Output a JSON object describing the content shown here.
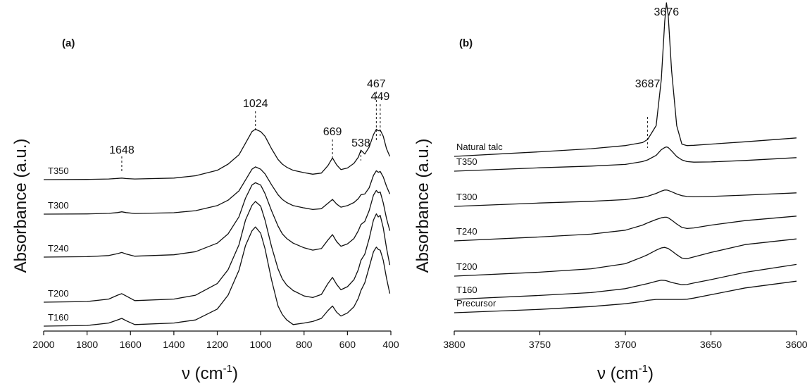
{
  "chart_data": [
    {
      "type": "line",
      "panel_label": "(a)",
      "ylabel": "Absorbance (a.u.)",
      "xlabel_base": "ν (cm",
      "xlabel_exp": "-1",
      "xlabel_close": ")",
      "x_axis": {
        "min": 400,
        "max": 2000,
        "reversed": true,
        "ticks": [
          2000,
          1800,
          1600,
          1400,
          1200,
          1000,
          800,
          600,
          400
        ],
        "tick_labels": [
          "2000",
          "1800",
          "1600",
          "1400",
          "1200",
          "1000",
          "800",
          "600",
          "400"
        ]
      },
      "annotations": [
        {
          "label": "1648",
          "x": 1640
        },
        {
          "label": "1024",
          "x": 1024
        },
        {
          "label": "669",
          "x": 669
        },
        {
          "label": "538",
          "x": 538
        },
        {
          "label": "467",
          "x": 467
        },
        {
          "label": "449",
          "x": 449
        }
      ],
      "series": [
        {
          "name": "T350",
          "x": [
            2000,
            1800,
            1700,
            1660,
            1640,
            1620,
            1580,
            1400,
            1300,
            1200,
            1150,
            1100,
            1070,
            1040,
            1024,
            1000,
            980,
            950,
            920,
            900,
            880,
            850,
            800,
            760,
            720,
            690,
            669,
            650,
            630,
            600,
            570,
            550,
            538,
            520,
            500,
            480,
            467,
            458,
            449,
            435,
            420,
            405
          ],
          "y": [
            0.0,
            0.003,
            0.008,
            0.015,
            0.02,
            0.014,
            0.008,
            0.02,
            0.05,
            0.12,
            0.2,
            0.32,
            0.47,
            0.62,
            0.65,
            0.62,
            0.56,
            0.4,
            0.26,
            0.2,
            0.16,
            0.12,
            0.09,
            0.07,
            0.085,
            0.18,
            0.28,
            0.19,
            0.13,
            0.15,
            0.21,
            0.29,
            0.38,
            0.33,
            0.42,
            0.58,
            0.65,
            0.63,
            0.64,
            0.56,
            0.4,
            0.3
          ]
        },
        {
          "name": "T300",
          "x": [
            2000,
            1800,
            1700,
            1660,
            1640,
            1620,
            1580,
            1400,
            1300,
            1200,
            1150,
            1100,
            1070,
            1040,
            1024,
            1000,
            980,
            950,
            920,
            900,
            880,
            850,
            800,
            760,
            720,
            690,
            669,
            650,
            630,
            600,
            570,
            550,
            538,
            520,
            500,
            480,
            467,
            458,
            449,
            435,
            420,
            405
          ],
          "y": [
            0.0,
            0.003,
            0.01,
            0.02,
            0.03,
            0.02,
            0.008,
            0.018,
            0.045,
            0.11,
            0.18,
            0.3,
            0.44,
            0.58,
            0.61,
            0.58,
            0.52,
            0.38,
            0.25,
            0.19,
            0.15,
            0.11,
            0.08,
            0.06,
            0.07,
            0.14,
            0.19,
            0.13,
            0.09,
            0.11,
            0.15,
            0.2,
            0.25,
            0.26,
            0.34,
            0.5,
            0.56,
            0.54,
            0.55,
            0.48,
            0.36,
            0.26
          ]
        },
        {
          "name": "T240",
          "x": [
            2000,
            1800,
            1700,
            1660,
            1640,
            1620,
            1580,
            1400,
            1300,
            1200,
            1150,
            1100,
            1070,
            1040,
            1024,
            1000,
            980,
            950,
            920,
            900,
            880,
            850,
            800,
            760,
            720,
            690,
            669,
            650,
            630,
            600,
            570,
            550,
            538,
            520,
            500,
            480,
            467,
            458,
            449,
            435,
            420,
            405
          ],
          "y": [
            0.0,
            0.005,
            0.02,
            0.045,
            0.06,
            0.04,
            0.012,
            0.03,
            0.07,
            0.18,
            0.3,
            0.52,
            0.76,
            0.93,
            0.96,
            0.93,
            0.82,
            0.6,
            0.4,
            0.3,
            0.24,
            0.18,
            0.12,
            0.09,
            0.11,
            0.22,
            0.29,
            0.2,
            0.14,
            0.17,
            0.24,
            0.34,
            0.42,
            0.46,
            0.6,
            0.8,
            0.86,
            0.83,
            0.84,
            0.7,
            0.5,
            0.34
          ]
        },
        {
          "name": "T200",
          "x": [
            2000,
            1800,
            1700,
            1660,
            1640,
            1620,
            1580,
            1400,
            1300,
            1200,
            1150,
            1100,
            1070,
            1040,
            1024,
            1000,
            980,
            950,
            920,
            900,
            880,
            850,
            800,
            760,
            720,
            690,
            669,
            650,
            630,
            600,
            570,
            550,
            538,
            520,
            500,
            480,
            467,
            458,
            449,
            435,
            420,
            405
          ],
          "y": [
            0.0,
            0.008,
            0.04,
            0.09,
            0.11,
            0.08,
            0.02,
            0.04,
            0.09,
            0.24,
            0.42,
            0.74,
            1.06,
            1.25,
            1.3,
            1.24,
            1.06,
            0.72,
            0.43,
            0.3,
            0.22,
            0.15,
            0.08,
            0.06,
            0.1,
            0.24,
            0.32,
            0.23,
            0.16,
            0.2,
            0.29,
            0.42,
            0.54,
            0.62,
            0.82,
            1.06,
            1.14,
            1.1,
            1.12,
            0.96,
            0.7,
            0.48
          ]
        },
        {
          "name": "T160",
          "x": [
            2000,
            1800,
            1700,
            1660,
            1640,
            1620,
            1580,
            1400,
            1300,
            1200,
            1150,
            1100,
            1070,
            1040,
            1024,
            1000,
            980,
            950,
            920,
            900,
            880,
            850,
            800,
            760,
            720,
            690,
            669,
            650,
            630,
            600,
            570,
            550,
            538,
            520,
            500,
            480,
            467,
            458,
            449,
            435,
            420,
            405
          ],
          "y": [
            0.0,
            0.008,
            0.04,
            0.08,
            0.1,
            0.07,
            0.02,
            0.04,
            0.08,
            0.22,
            0.4,
            0.72,
            1.04,
            1.23,
            1.28,
            1.2,
            1.0,
            0.6,
            0.26,
            0.15,
            0.08,
            0.02,
            0.04,
            0.06,
            0.1,
            0.2,
            0.26,
            0.18,
            0.13,
            0.17,
            0.25,
            0.36,
            0.46,
            0.56,
            0.76,
            0.96,
            1.02,
            0.99,
            0.98,
            0.85,
            0.62,
            0.42
          ]
        }
      ]
    },
    {
      "type": "line",
      "panel_label": "(b)",
      "ylabel": "Absorbance (a.u.)",
      "xlabel_base": "ν (cm",
      "xlabel_exp": "-1",
      "xlabel_close": ")",
      "x_axis": {
        "min": 3600,
        "max": 3800,
        "reversed": true,
        "ticks": [
          3800,
          3750,
          3700,
          3650,
          3600
        ],
        "tick_labels": [
          "3800",
          "3750",
          "3700",
          "3650",
          "3600"
        ]
      },
      "annotations": [
        {
          "label": "3687",
          "x": 3687
        },
        {
          "label": "3676",
          "x": 3676
        }
      ],
      "series": [
        {
          "name": "Natural talc",
          "x": [
            3800,
            3750,
            3720,
            3700,
            3690,
            3687,
            3682,
            3679,
            3677,
            3676,
            3675,
            3673,
            3670,
            3667,
            3664,
            3660,
            3650,
            3630,
            3600
          ],
          "y": [
            0.0,
            0.03,
            0.05,
            0.07,
            0.09,
            0.11,
            0.2,
            0.5,
            0.88,
            1.0,
            0.92,
            0.56,
            0.2,
            0.08,
            0.07,
            0.072,
            0.08,
            0.095,
            0.12
          ]
        },
        {
          "name": "T350",
          "x": [
            3800,
            3750,
            3720,
            3700,
            3690,
            3687,
            3682,
            3679,
            3677,
            3676,
            3675,
            3673,
            3670,
            3667,
            3664,
            3660,
            3650,
            3630,
            3600
          ],
          "y": [
            0.0,
            0.03,
            0.045,
            0.06,
            0.085,
            0.1,
            0.14,
            0.19,
            0.21,
            0.215,
            0.21,
            0.18,
            0.13,
            0.1,
            0.085,
            0.08,
            0.082,
            0.095,
            0.12
          ]
        },
        {
          "name": "T300",
          "x": [
            3800,
            3750,
            3720,
            3700,
            3690,
            3687,
            3682,
            3679,
            3677,
            3676,
            3675,
            3673,
            3670,
            3667,
            3664,
            3660,
            3650,
            3630,
            3600
          ],
          "y": [
            0.0,
            0.03,
            0.045,
            0.06,
            0.08,
            0.09,
            0.115,
            0.135,
            0.145,
            0.145,
            0.142,
            0.13,
            0.11,
            0.095,
            0.088,
            0.085,
            0.088,
            0.1,
            0.12
          ]
        },
        {
          "name": "T240",
          "x": [
            3800,
            3750,
            3720,
            3700,
            3690,
            3687,
            3682,
            3679,
            3677,
            3676,
            3675,
            3673,
            3670,
            3667,
            3664,
            3660,
            3650,
            3630,
            3600
          ],
          "y": [
            0.0,
            0.035,
            0.06,
            0.095,
            0.14,
            0.16,
            0.19,
            0.205,
            0.21,
            0.21,
            0.205,
            0.185,
            0.15,
            0.12,
            0.11,
            0.115,
            0.14,
            0.18,
            0.22
          ]
        },
        {
          "name": "T200",
          "x": [
            3800,
            3750,
            3720,
            3700,
            3690,
            3687,
            3682,
            3679,
            3677,
            3676,
            3675,
            3673,
            3670,
            3667,
            3664,
            3660,
            3650,
            3630,
            3600
          ],
          "y": [
            0.0,
            0.035,
            0.065,
            0.11,
            0.17,
            0.19,
            0.23,
            0.25,
            0.255,
            0.25,
            0.245,
            0.225,
            0.19,
            0.16,
            0.155,
            0.17,
            0.21,
            0.28,
            0.33
          ]
        },
        {
          "name": "T160",
          "x": [
            3800,
            3750,
            3720,
            3700,
            3690,
            3687,
            3682,
            3679,
            3677,
            3676,
            3675,
            3673,
            3670,
            3667,
            3664,
            3660,
            3650,
            3630,
            3600
          ],
          "y": [
            0.0,
            0.035,
            0.06,
            0.095,
            0.13,
            0.14,
            0.16,
            0.17,
            0.168,
            0.165,
            0.16,
            0.15,
            0.14,
            0.13,
            0.132,
            0.145,
            0.175,
            0.24,
            0.31
          ]
        },
        {
          "name": "Precursor",
          "x": [
            3800,
            3750,
            3720,
            3700,
            3690,
            3687,
            3682,
            3679,
            3677,
            3676,
            3675,
            3673,
            3670,
            3667,
            3664,
            3660,
            3650,
            3630,
            3600
          ],
          "y": [
            0.0,
            0.03,
            0.055,
            0.08,
            0.1,
            0.11,
            0.118,
            0.118,
            0.118,
            0.118,
            0.118,
            0.118,
            0.118,
            0.118,
            0.12,
            0.13,
            0.16,
            0.22,
            0.28
          ]
        }
      ]
    }
  ]
}
